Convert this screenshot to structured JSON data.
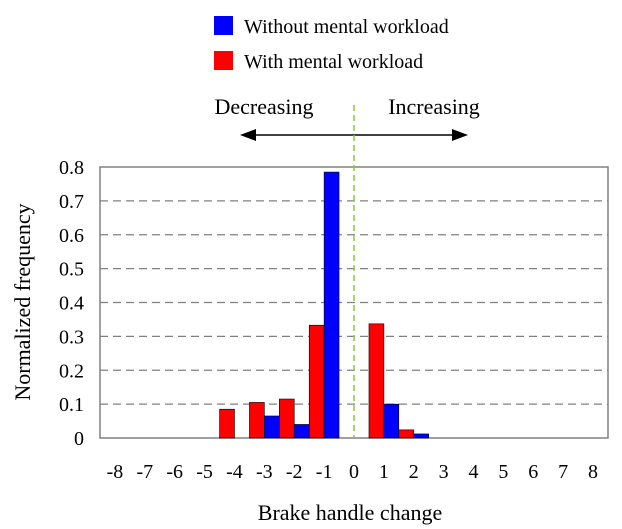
{
  "chart_data": {
    "type": "bar",
    "xlabel": "Brake handle change",
    "ylabel": "Normalized frequency",
    "categories": [
      "-8",
      "-7",
      "-6",
      "-5",
      "-4",
      "-3",
      "-2",
      "-1",
      "0",
      "1",
      "2",
      "3",
      "4",
      "5",
      "6",
      "7",
      "8"
    ],
    "ylim": [
      0,
      0.8
    ],
    "yticks": [
      "0",
      "0.1",
      "0.2",
      "0.3",
      "0.4",
      "0.5",
      "0.6",
      "0.7",
      "0.8"
    ],
    "grid": "horizontal dashed",
    "legend_position": "top-center",
    "series": [
      {
        "name": "Without mental workload",
        "color": "#0000ff",
        "values": [
          0,
          0,
          0,
          0,
          0,
          0.065,
          0.04,
          0.785,
          0,
          0.1,
          0.012,
          0,
          0,
          0,
          0,
          0,
          0
        ]
      },
      {
        "name": "With mental workload",
        "color": "#ff0000",
        "values": [
          0,
          0,
          0,
          0,
          0.085,
          0.105,
          0.115,
          0.333,
          0,
          0.337,
          0.024,
          0,
          0,
          0,
          0,
          0,
          0
        ]
      }
    ],
    "annotations": {
      "left": "Decreasing",
      "right": "Increasing",
      "divider_color": "#88cc33"
    }
  }
}
